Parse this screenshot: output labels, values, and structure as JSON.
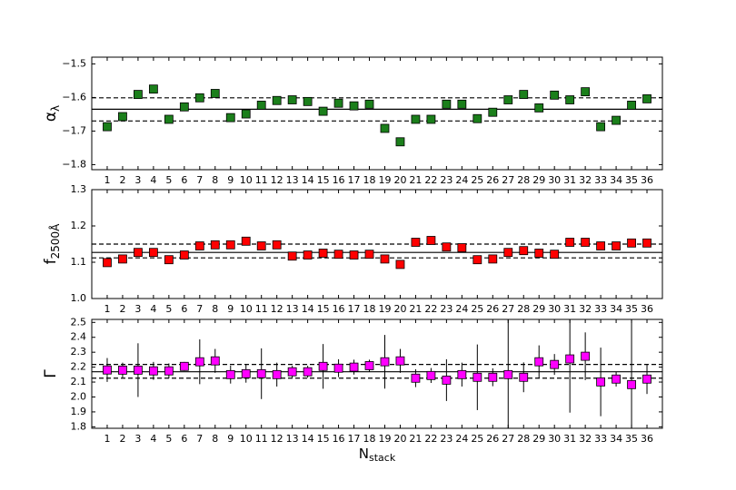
{
  "chart_data": [
    {
      "type": "scatter",
      "ylabel": "α",
      "ylabel_sub": "λ",
      "color": "#1b7f1b",
      "x": [
        1,
        2,
        3,
        4,
        5,
        6,
        7,
        8,
        9,
        10,
        11,
        12,
        13,
        14,
        15,
        16,
        17,
        18,
        19,
        20,
        21,
        22,
        23,
        24,
        25,
        26,
        27,
        28,
        29,
        30,
        31,
        32,
        33,
        34,
        35,
        36
      ],
      "values": [
        -1.687,
        -1.657,
        -1.591,
        -1.575,
        -1.665,
        -1.628,
        -1.601,
        -1.588,
        -1.66,
        -1.649,
        -1.623,
        -1.609,
        -1.607,
        -1.612,
        -1.641,
        -1.617,
        -1.625,
        -1.62,
        -1.692,
        -1.732,
        -1.665,
        -1.665,
        -1.62,
        -1.62,
        -1.663,
        -1.644,
        -1.607,
        -1.591,
        -1.631,
        -1.593,
        -1.607,
        -1.583,
        -1.687,
        -1.668,
        -1.623,
        -1.604
      ],
      "mean_line": -1.635,
      "band_lines": [
        -1.601,
        -1.67
      ],
      "xlim": [
        0,
        37
      ],
      "xticks": [
        1,
        2,
        3,
        4,
        5,
        6,
        7,
        8,
        9,
        10,
        11,
        12,
        13,
        14,
        15,
        16,
        17,
        18,
        19,
        20,
        21,
        22,
        23,
        24,
        25,
        26,
        27,
        28,
        29,
        30,
        31,
        32,
        33,
        34,
        35,
        36
      ],
      "ylim": [
        -1.815,
        -1.48
      ],
      "yticks": [
        {
          "value": -1.5,
          "label": "−1.5"
        },
        {
          "value": -1.6,
          "label": "−1.6"
        },
        {
          "value": -1.7,
          "label": "−1.7"
        },
        {
          "value": -1.8,
          "label": "−1.8"
        }
      ]
    },
    {
      "type": "scatter",
      "ylabel": "f",
      "ylabel_sub": "2500Å",
      "color": "#ff0000",
      "x": [
        1,
        2,
        3,
        4,
        5,
        6,
        7,
        8,
        9,
        10,
        11,
        12,
        13,
        14,
        15,
        16,
        17,
        18,
        19,
        20,
        21,
        22,
        23,
        24,
        25,
        26,
        27,
        28,
        29,
        30,
        31,
        32,
        33,
        34,
        35,
        36
      ],
      "values": [
        1.099,
        1.109,
        1.127,
        1.127,
        1.107,
        1.12,
        1.145,
        1.148,
        1.148,
        1.158,
        1.145,
        1.148,
        1.117,
        1.12,
        1.125,
        1.122,
        1.12,
        1.122,
        1.109,
        1.094,
        1.155,
        1.16,
        1.142,
        1.14,
        1.107,
        1.109,
        1.127,
        1.132,
        1.125,
        1.122,
        1.155,
        1.155,
        1.145,
        1.145,
        1.153,
        1.153
      ],
      "mean_line": 1.127,
      "band_lines": [
        1.15,
        1.112
      ],
      "xlim": [
        0,
        37
      ],
      "xticks": [
        1,
        2,
        3,
        4,
        5,
        6,
        7,
        8,
        9,
        10,
        11,
        12,
        13,
        14,
        15,
        16,
        17,
        18,
        19,
        20,
        21,
        22,
        23,
        24,
        25,
        26,
        27,
        28,
        29,
        30,
        31,
        32,
        33,
        34,
        35,
        36
      ],
      "ylim": [
        1.0,
        1.3
      ],
      "yticks": [
        {
          "value": 1.0,
          "label": "1.0"
        },
        1.1,
        1.2,
        1.3
      ]
    },
    {
      "type": "scatter",
      "ylabel": "Γ",
      "xlabel": "N",
      "xlabel_sub": "stack",
      "color": "#ff00ff",
      "x": [
        1,
        2,
        3,
        4,
        5,
        6,
        7,
        8,
        9,
        10,
        11,
        12,
        13,
        14,
        15,
        16,
        17,
        18,
        19,
        20,
        21,
        22,
        23,
        24,
        25,
        26,
        27,
        28,
        29,
        30,
        31,
        32,
        33,
        34,
        35,
        36
      ],
      "values": [
        2.181,
        2.18,
        2.18,
        2.175,
        2.175,
        2.205,
        2.236,
        2.242,
        2.15,
        2.156,
        2.156,
        2.15,
        2.169,
        2.169,
        2.205,
        2.193,
        2.2,
        2.21,
        2.236,
        2.242,
        2.126,
        2.144,
        2.113,
        2.15,
        2.132,
        2.132,
        2.15,
        2.132,
        2.236,
        2.218,
        2.255,
        2.273,
        2.101,
        2.12,
        2.083,
        2.12
      ],
      "errors": [
        0.08,
        0.05,
        0.18,
        0.06,
        0.05,
        0.03,
        0.15,
        0.08,
        0.06,
        0.06,
        0.17,
        0.08,
        0.04,
        0.04,
        0.15,
        0.06,
        0.05,
        0.04,
        0.18,
        0.08,
        0.06,
        0.05,
        0.14,
        0.08,
        0.22,
        0.06,
        0.5,
        0.1,
        0.11,
        0.07,
        0.36,
        0.16,
        0.23,
        0.05,
        0.5,
        0.1
      ],
      "mean_line": 2.169,
      "band_lines": [
        2.218,
        2.126
      ],
      "xlim": [
        0,
        37
      ],
      "xticks": [
        1,
        2,
        3,
        4,
        5,
        6,
        7,
        8,
        9,
        10,
        11,
        12,
        13,
        14,
        15,
        16,
        17,
        18,
        19,
        20,
        21,
        22,
        23,
        24,
        25,
        26,
        27,
        28,
        29,
        30,
        31,
        32,
        33,
        34,
        35,
        36
      ],
      "ylim": [
        1.79,
        2.52
      ],
      "yticks": [
        {
          "value": 1.8,
          "label": "1.8"
        },
        1.9,
        {
          "value": 2.0,
          "label": "2.0"
        },
        2.1,
        2.2,
        2.3,
        2.4,
        2.5
      ]
    }
  ]
}
